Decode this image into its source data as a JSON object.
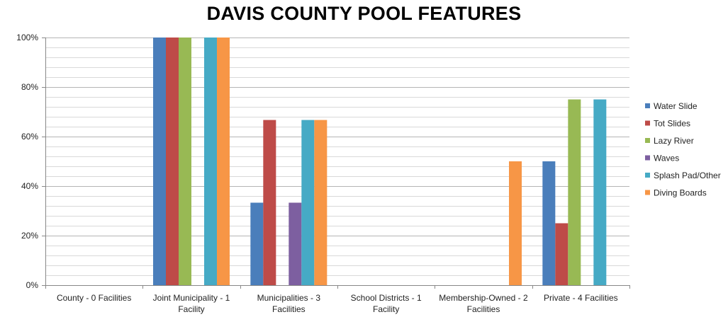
{
  "chart_data": {
    "type": "bar",
    "title": "DAVIS COUNTY POOL FEATURES",
    "xlabel": "",
    "ylabel": "",
    "ylim": [
      0,
      100
    ],
    "yticks": [
      "0%",
      "20%",
      "40%",
      "60%",
      "80%",
      "100%"
    ],
    "grid": true,
    "legend_position": "right",
    "categories": [
      [
        "County - 0 Facilities"
      ],
      [
        "Joint Municipality - 1",
        "Facility"
      ],
      [
        "Municipalities - 3",
        "Facilities"
      ],
      [
        "School Districts - 1",
        "Facility"
      ],
      [
        "Membership-Owned - 2",
        "Facilities"
      ],
      [
        "Private - 4 Facilities"
      ]
    ],
    "series": [
      {
        "name": "Water Slide",
        "color": "#4a7ebb",
        "values": [
          0,
          100,
          33.3,
          0,
          0,
          50
        ]
      },
      {
        "name": "Tot Slides",
        "color": "#be4b48",
        "values": [
          0,
          100,
          66.7,
          0,
          0,
          25
        ]
      },
      {
        "name": "Lazy River",
        "color": "#98b954",
        "values": [
          0,
          100,
          0,
          0,
          0,
          75
        ]
      },
      {
        "name": "Waves",
        "color": "#7d5fa0",
        "values": [
          0,
          0,
          33.3,
          0,
          0,
          0
        ]
      },
      {
        "name": "Splash Pad/Other",
        "color": "#46aac5",
        "values": [
          0,
          100,
          66.7,
          0,
          0,
          75
        ]
      },
      {
        "name": "Diving Boards",
        "color": "#f79646",
        "values": [
          0,
          100,
          66.7,
          0,
          50,
          0
        ]
      }
    ]
  }
}
